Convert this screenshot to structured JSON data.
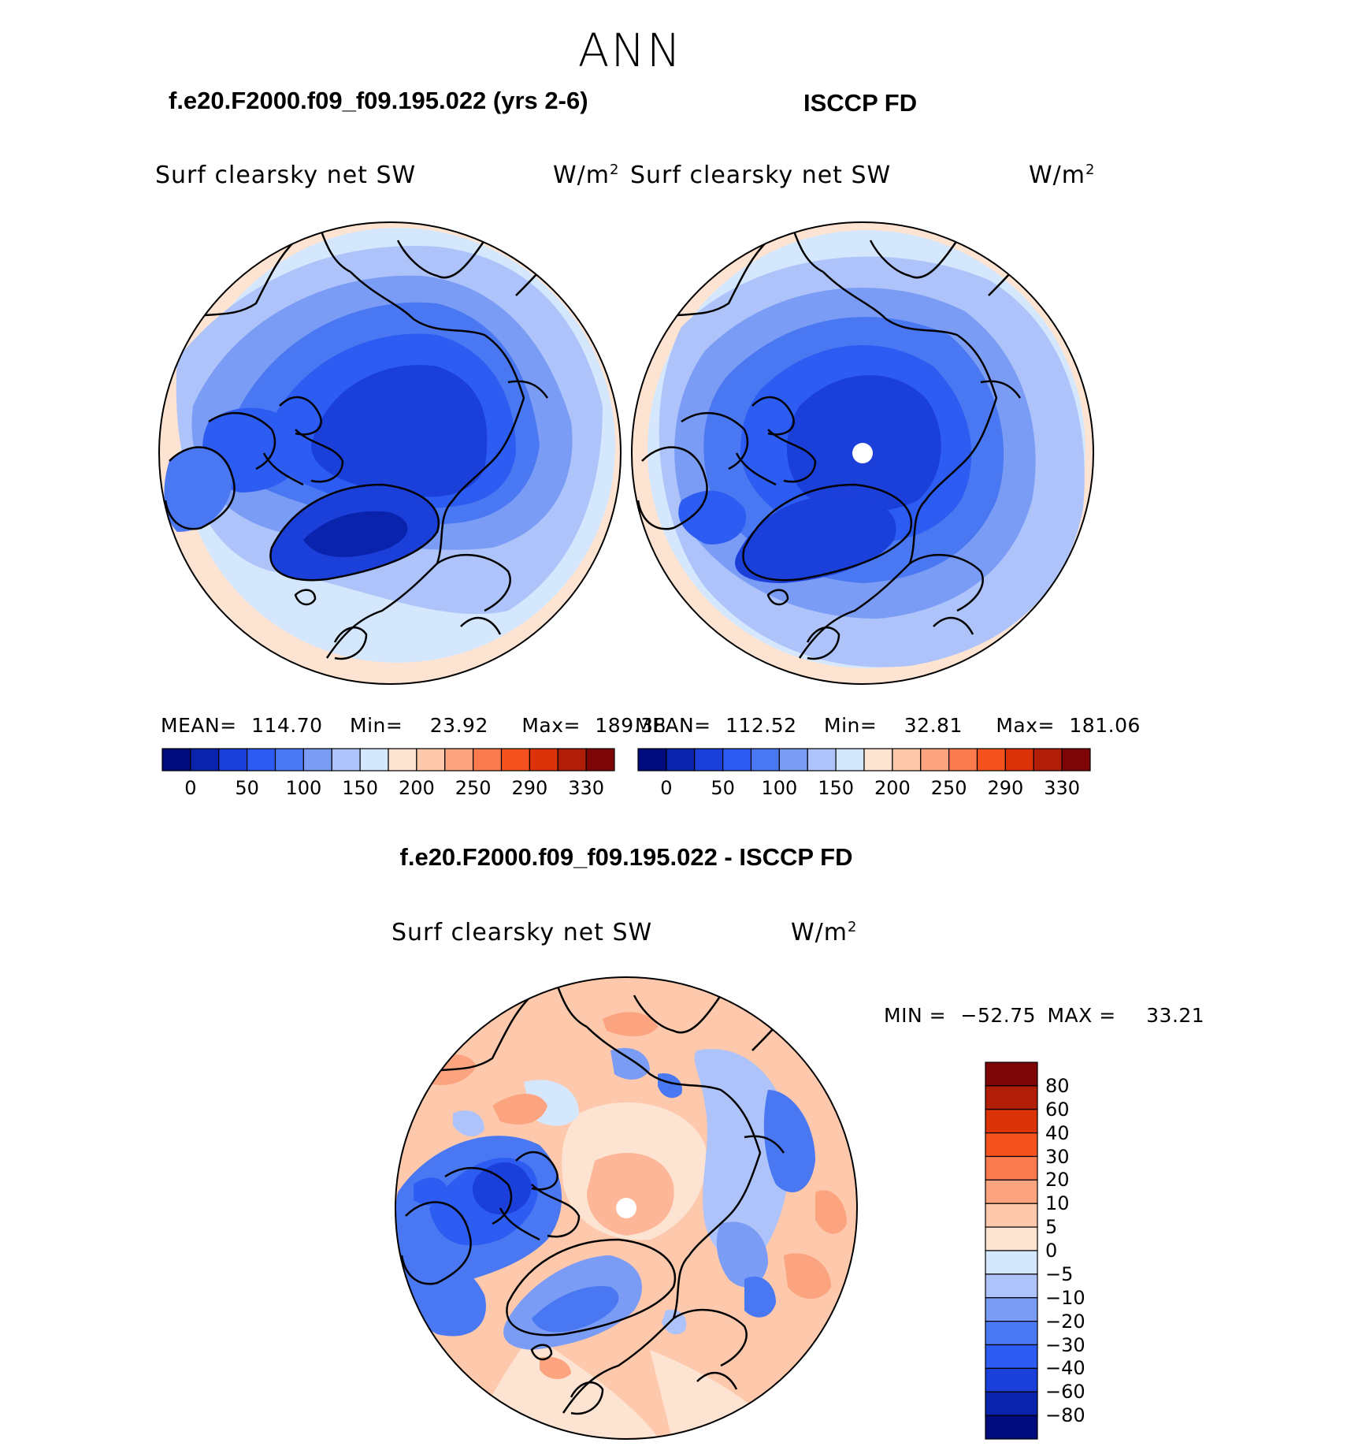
{
  "season": "ANN",
  "panels": {
    "model": {
      "title": "f.e20.F2000.f09_f09.195.022 (yrs 2-6)",
      "variable": "Surf clearsky net SW",
      "units": "W/m",
      "units_power": "2",
      "mean_label": "MEAN=",
      "mean_value": "114.70",
      "min_label": "Min=",
      "min_value": "23.92",
      "max_label": "Max=",
      "max_value": "189.38"
    },
    "obs": {
      "title": "ISCCP FD",
      "variable": "Surf clearsky net SW",
      "units": "W/m",
      "units_power": "2",
      "mean_label": "MEAN=",
      "mean_value": "112.52",
      "min_label": "Min=",
      "min_value": "32.81",
      "max_label": "Max=",
      "max_value": "181.06"
    },
    "diff": {
      "title": "f.e20.F2000.f09_f09.195.022 - ISCCP FD",
      "variable": "Surf clearsky net SW",
      "units": "W/m",
      "units_power": "2",
      "min_label": "MIN =",
      "min_value": "−52.75",
      "max_label": "MAX =",
      "max_value": "33.21"
    }
  },
  "colorbar_abs": {
    "colors": [
      "#000c7d",
      "#0a23ad",
      "#1b3fd9",
      "#2c5cf2",
      "#4a78f2",
      "#7b9cf5",
      "#adc3fa",
      "#d5e7fd",
      "#fde4d2",
      "#fdc8ac",
      "#fca47f",
      "#fb7b4e",
      "#f45320",
      "#dc3208",
      "#b01e08",
      "#7d0505"
    ],
    "tick_labels": [
      "0",
      "50",
      "100",
      "150",
      "200",
      "250",
      "290",
      "330"
    ]
  },
  "colorbar_diff": {
    "colors": [
      "#7d0505",
      "#b01e08",
      "#dc3208",
      "#f45320",
      "#fb7b4e",
      "#fca47f",
      "#fdc8ac",
      "#fde4d2",
      "#d5e7fd",
      "#adc3fa",
      "#7b9cf5",
      "#4a78f2",
      "#2c5cf2",
      "#1b3fd9",
      "#0a23ad",
      "#000c7d"
    ],
    "tick_labels": [
      "80",
      "60",
      "40",
      "30",
      "20",
      "10",
      "5",
      "0",
      "−5",
      "−10",
      "−20",
      "−30",
      "−40",
      "−60",
      "−80"
    ]
  },
  "map_colors": {
    "ocean_rim": "#fde4d2",
    "lightest_blue": "#d5e7fd",
    "light_blue": "#adc3fa",
    "mid_blue": "#7b9cf5",
    "blue": "#4a78f2",
    "strong_blue": "#2c5cf2",
    "deep_blue": "#1b3fd9",
    "darkest_blue": "#0a23ad",
    "diff_base": "#fdc8ac",
    "diff_pale": "#fde4d2",
    "diff_warm": "#fca47f"
  }
}
